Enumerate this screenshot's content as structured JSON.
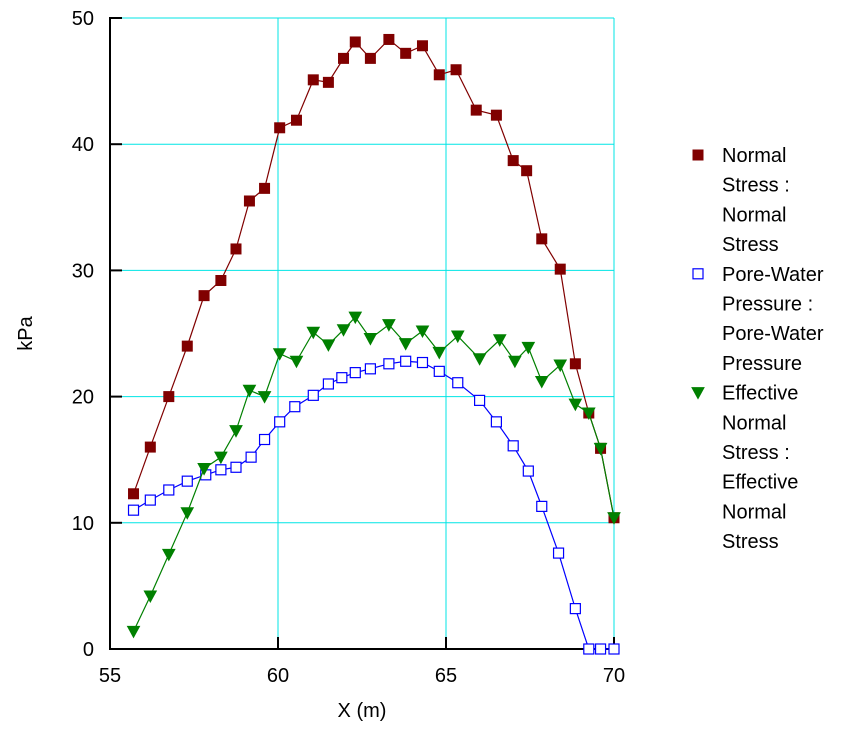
{
  "chart_data": {
    "type": "line",
    "xlabel": "X (m)",
    "ylabel": "kPa",
    "xlim": [
      55,
      70
    ],
    "ylim": [
      0,
      50
    ],
    "x_ticks": [
      55,
      60,
      65,
      70
    ],
    "y_ticks": [
      0,
      10,
      20,
      30,
      40,
      50
    ],
    "x_tick_labels": [
      "55",
      "60",
      "65",
      "70"
    ],
    "y_tick_labels": [
      "0",
      "10",
      "20",
      "30",
      "40",
      "50"
    ],
    "grid": true,
    "grid_color": "#00e5e5",
    "legend_position": "right",
    "series": [
      {
        "name_lines": [
          "Normal",
          "Stress :",
          "Normal",
          "Stress"
        ],
        "color": "#800000",
        "marker": "filled-square",
        "x": [
          55.7,
          56.2,
          56.75,
          57.3,
          57.8,
          58.3,
          58.75,
          59.15,
          59.6,
          60.05,
          60.55,
          61.05,
          61.5,
          61.95,
          62.3,
          62.75,
          63.3,
          63.8,
          64.3,
          64.8,
          65.3,
          65.9,
          66.5,
          67.0,
          67.4,
          67.85,
          68.4,
          68.85,
          69.25,
          69.6,
          70.0
        ],
        "y": [
          12.3,
          16.0,
          20.0,
          24.0,
          28.0,
          29.2,
          31.7,
          35.5,
          36.5,
          41.3,
          41.9,
          45.1,
          44.9,
          46.8,
          48.1,
          46.8,
          48.3,
          47.2,
          47.8,
          45.5,
          45.9,
          42.7,
          42.3,
          38.7,
          37.9,
          32.5,
          30.1,
          22.6,
          18.7,
          15.9,
          10.4
        ]
      },
      {
        "name_lines": [
          "Pore-Water",
          "Pressure :",
          "Pore-Water",
          "Pressure"
        ],
        "color": "#0000ff",
        "marker": "open-square",
        "x": [
          55.7,
          56.2,
          56.75,
          57.3,
          57.85,
          58.3,
          58.75,
          59.2,
          59.6,
          60.05,
          60.5,
          61.05,
          61.5,
          61.9,
          62.3,
          62.75,
          63.3,
          63.8,
          64.3,
          64.8,
          65.35,
          66.0,
          66.5,
          67.0,
          67.45,
          67.85,
          68.35,
          68.85,
          69.25,
          69.6,
          70.0
        ],
        "y": [
          11.0,
          11.8,
          12.6,
          13.3,
          13.8,
          14.2,
          14.4,
          15.2,
          16.6,
          18.0,
          19.2,
          20.1,
          21.0,
          21.5,
          21.9,
          22.2,
          22.6,
          22.8,
          22.7,
          22.0,
          21.1,
          19.7,
          18.0,
          16.1,
          14.1,
          11.3,
          7.6,
          3.2,
          0.0,
          0.0,
          0.0
        ]
      },
      {
        "name_lines": [
          "Effective",
          "Normal",
          "Stress :",
          "Effective",
          "Normal",
          "Stress"
        ],
        "color": "#008000",
        "marker": "filled-triangle-down",
        "x": [
          55.7,
          56.2,
          56.75,
          57.3,
          57.8,
          58.3,
          58.75,
          59.15,
          59.6,
          60.05,
          60.55,
          61.05,
          61.5,
          61.95,
          62.3,
          62.75,
          63.3,
          63.8,
          64.3,
          64.8,
          65.35,
          66.0,
          66.6,
          67.05,
          67.45,
          67.85,
          68.4,
          68.85,
          69.25,
          69.6,
          70.0
        ],
        "y": [
          1.4,
          4.2,
          7.5,
          10.8,
          14.3,
          15.2,
          17.3,
          20.5,
          20.0,
          23.4,
          22.8,
          25.1,
          24.1,
          25.3,
          26.3,
          24.6,
          25.7,
          24.2,
          25.2,
          23.5,
          24.8,
          23.0,
          24.5,
          22.8,
          23.9,
          21.2,
          22.5,
          19.4,
          18.7,
          15.9,
          10.4
        ]
      }
    ]
  }
}
